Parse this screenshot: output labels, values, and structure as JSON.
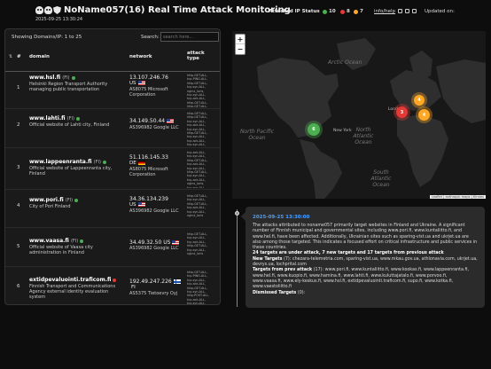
{
  "header": {
    "title": "NoName057(16) Real Time Attack Monitoring",
    "subtitle": "2025-09-25 13:30:24",
    "ip_status_label": "Attacked IP Status",
    "status_counts": [
      {
        "value": "10",
        "color": "#4caf50"
      },
      {
        "value": "8",
        "color": "#e53935"
      },
      {
        "value": "7",
        "color": "#ffa726"
      }
    ],
    "info_link": "info/help",
    "updated_label": "Updated on:",
    "icons": [
      "skull-icon",
      "skull-icon",
      "shield-icon"
    ]
  },
  "table": {
    "showing": "Showing Domains/IP: 1 to 25",
    "search_label": "Search:",
    "search_placeholder": "search here...",
    "columns": [
      "#",
      "domain",
      "network",
      "attack type"
    ],
    "rows": [
      {
        "num": "1",
        "domain": "www.hsl.fi",
        "tld": "(FI)",
        "status": "#4caf50",
        "desc": "Helsinki Region Transport Authority managing public transportation",
        "ip": "13.107.246.76",
        "cc": "US",
        "flag": "us",
        "asn": "AS8075 Microsoft Corporation",
        "atk": "http-GET-ALL, tcp-PING-ALL, http-GET-ALL, tcp-syn-ALL, nginx_loris, tcp-syn-ALL, tcp-ack-ALL, http-GET-ALL, http-GET-ALL, tcp-syn-ALL, tcp-ack-ALL, http-GET-ALL"
      },
      {
        "num": "2",
        "domain": "www.lahti.fi",
        "tld": "(FI)",
        "status": "#4caf50",
        "desc": "Official website of Lahti city, Finland",
        "ip": "34.149.50.44",
        "cc": "",
        "flag": "us",
        "asn": "AS396982 Google LLC",
        "atk": "http-GET-ALL, http-GET-ALL, tcp-syn-ALL, tcp-ack-ALL, tcp-syn-ALL, http-GET-ALL, tcp-syn-ALL, tcp-ack-ALL, tcp-syn-ALL, nginx_loris"
      },
      {
        "num": "3",
        "domain": "www.lappeenranta.fi",
        "tld": "(FI)",
        "status": "#4caf50",
        "desc": "Official website of Lappeenranta city, Finland",
        "ip": "51.116.145.33",
        "cc": "DE",
        "flag": "de",
        "asn": "AS8075 Microsoft Corporation",
        "atk": "tcp-ack-ALL, tcp-syn-ALL, http-GET-ALL, tcp-ack-ALL, tcp-syn-ALL, http-GET-ALL, tcp-syn-ALL, tcp-ack-ALL, nginx_loris, tcp-syn-ALL, http-GET-ALL, http-GET-ALL"
      },
      {
        "num": "4",
        "domain": "www.pori.fi",
        "tld": "(FI)",
        "status": "#4caf50",
        "desc": "City of Pori Finland",
        "ip": "34.36.134.239",
        "cc": "US",
        "flag": "us",
        "asn": "AS396982 Google LLC",
        "atk": "http-GET-ALL, tcp-syn-ALL, http-GET-ALL, tcp-ack-ALL, tcp-syn-ALL, nginx_loris"
      },
      {
        "num": "5",
        "domain": "www.vaasa.fi",
        "tld": "(FI)",
        "status": "#4caf50",
        "desc": "Official website of Vaasa city administration in Finland",
        "ip": "34.49.32.50",
        "cc": "US",
        "flag": "us",
        "asn": "AS396982 Google LLC",
        "atk": "http-GET-ALL, tcp-syn-ALL, tcp-ack-ALL, http-GET-ALL, tcp-syn-ALL, nginx_loris"
      },
      {
        "num": "6",
        "domain": "extidpevaluointi.traficom.fi",
        "tld": "",
        "status": "#e53935",
        "desc": "Finnish Transport and Communications Agency external identity evaluation system",
        "ip": "192.49.247.226",
        "cc": "FI",
        "flag": "fi",
        "asn": "AS5375 Tietoevry Oyj",
        "atk": "http-GET-ALL, tcp-PING-ALL, tcp-syn-ALL, tcp-ack-ALL, http-GET-ALL, tcp-syn-ALL, http-POST-ALL, tcp-ack-ALL, tcp-syn-ALL, http-GET-ALL, tcp-ack-ALL, tcp-syn-ALL, nginx_loris, http-GET-ALL"
      }
    ]
  },
  "map": {
    "labels": {
      "arctic": "Arctic Ocean",
      "north_pacific": "North Pacific Ocean",
      "north_atlantic": "North Atlantic Ocean",
      "south_atlantic": "South Atlantic Ocean"
    },
    "cities": {
      "new_york": "New York",
      "london": "London"
    },
    "zoom_in": "+",
    "zoom_out": "−",
    "clusters": [
      {
        "value": "6",
        "color": "#4caf50"
      },
      {
        "value": "3",
        "color": "#e53935"
      },
      {
        "value": "4",
        "color": "#ffa726"
      },
      {
        "value": "4",
        "color": "#ffa726"
      }
    ],
    "attribution": "Leaflet | anthropic maps | Kinnes"
  },
  "timeline": {
    "date": "2025-09-25 13:30:00",
    "summary": "The attacks attributed to noname057 primarily target websites in Finland and Ukraine. A significant number of Finnish municipal and governmental sites, including www.pori.fi, www.kuntaliitto.fi, and www.hel.fi, have been affected. Additionally, Ukrainian sites such as sparing-vist.ua and ukrjet.ua are also among those targeted. This indicates a focused effort on critical infrastructure and public services in these countries.",
    "stats": "24 targets are under attack, 7 new targets and 17 targets from previous attack",
    "new_label": "New Targets",
    "new_count": "(7):",
    "new_list": "chezara-telemetria.com, sparing-vist.ua, www.mkau.gov.ua, athlonavia.com, ukrjet.ua, devrys.ua, lochprital.com",
    "prev_label": "Targets from prev attack",
    "prev_count": "(17):",
    "prev_list": "www.pori.fi, www.kuntaliitto.fi, www.kookas.fi, www.lappeenranta.fi, www.hel.fi, www.kuopio.fi, www.hamina.fi, www.lahti.fi, www.kuluttajatalo.fi, www.porvoo.fi, www.vaasa.fi, www.ely-keskus.fi, www.hsl.fi, extidpevaluointi.traficom.fi, supo.fi, www.kotka.fi, www.vaestoliitto.fi",
    "dismissed_label": "Dismissed Targets",
    "dismissed_count": "(0):"
  }
}
